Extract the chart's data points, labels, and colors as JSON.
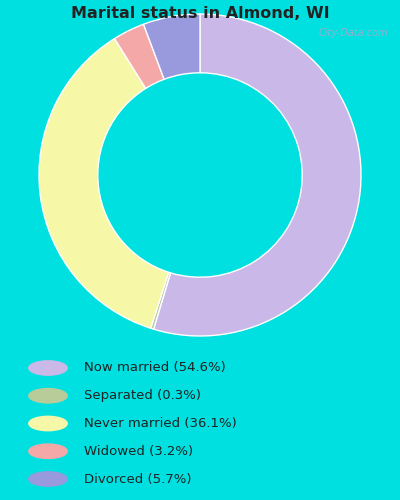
{
  "title": "Marital status in Almond, WI",
  "slices": [
    54.6,
    0.3,
    36.1,
    3.2,
    5.7
  ],
  "labels": [
    "Now married (54.6%)",
    "Separated (0.3%)",
    "Never married (36.1%)",
    "Widowed (3.2%)",
    "Divorced (5.7%)"
  ],
  "colors": [
    "#c9b8e8",
    "#b8cc99",
    "#f7f7a8",
    "#f5a8a8",
    "#9999dd"
  ],
  "legend_colors": [
    "#c9b8e8",
    "#b8cc99",
    "#f7f7a8",
    "#f5a8a8",
    "#9999dd"
  ],
  "bg_color_chart": "#c8eec8",
  "bg_color_bottom": "#00e0e0",
  "title_color": "#222222",
  "legend_text_color": "#222222",
  "watermark": "City-Data.com"
}
